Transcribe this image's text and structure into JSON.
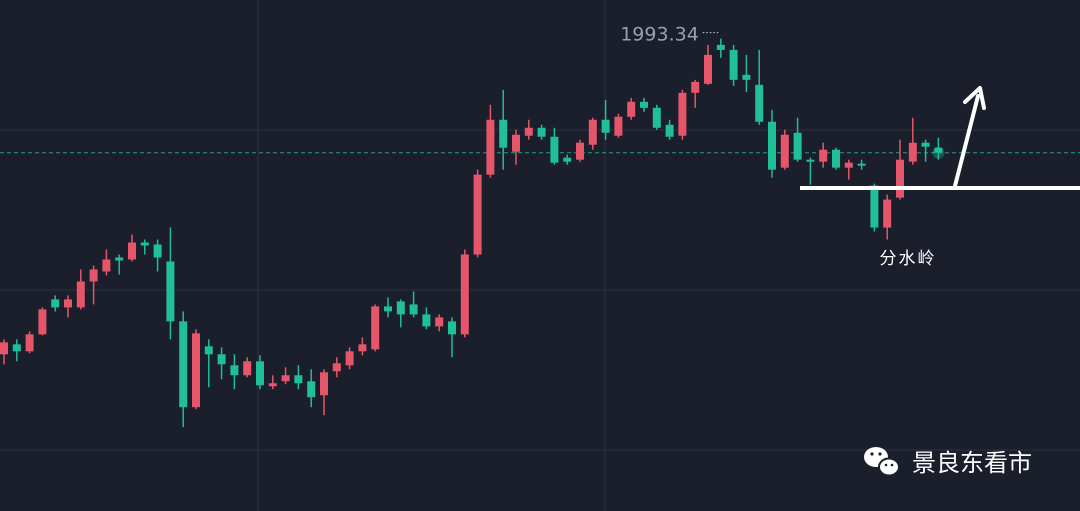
{
  "chart_data": {
    "type": "candlestick",
    "ylim": [
      1875,
      2003
    ],
    "up_color": "#e5566a",
    "down_color": "#1fbf99",
    "open": [
      1914.25,
      1916.75,
      1915,
      1919.25,
      1928,
      1926,
      1926,
      1932.5,
      1935,
      1938.5,
      1938,
      1942.25,
      1941.75,
      1937.5,
      1922.5,
      1901,
      1916.25,
      1914.25,
      1911.5,
      1909,
      1912.5,
      1906.25,
      1907.5,
      1909,
      1907.5,
      1904,
      1910,
      1911.5,
      1915,
      1915.5,
      1926.25,
      1927.5,
      1926.75,
      1924.25,
      1921.25,
      1922.5,
      1919.25,
      1939.25,
      1959.25,
      1973,
      1965,
      1969,
      1971,
      1968.75,
      1963.5,
      1963,
      1966.75,
      1973,
      1969,
      1973.75,
      1977.5,
      1976,
      1971.75,
      1969,
      1979.75,
      1982,
      1991.75,
      1990.5,
      1984.25,
      1981.75,
      1972.5,
      1961,
      1969.75,
      1963,
      1962.5,
      1965.5,
      1961,
      1962,
      1956.5,
      1946,
      1953.5,
      1962.5,
      1967.25,
      1966
    ],
    "high": [
      1918,
      1918,
      1920,
      1926,
      1929,
      1929,
      1935.5,
      1936.5,
      1940.5,
      1939.25,
      1944.25,
      1943,
      1943,
      1946,
      1925,
      1920.5,
      1918,
      1916,
      1914.25,
      1913.5,
      1914,
      1909,
      1911,
      1911.5,
      1910.5,
      1910.5,
      1913.5,
      1916,
      1918.5,
      1926.75,
      1928.5,
      1928,
      1930,
      1926,
      1924.25,
      1923.5,
      1940.5,
      1960.5,
      1976.75,
      1980.5,
      1970.5,
      1973,
      1971.75,
      1971,
      1964.25,
      1968,
      1973.5,
      1978,
      1974.5,
      1978.5,
      1978.5,
      1976.75,
      1973,
      1980.5,
      1983,
      1991.75,
      1993.34,
      1991.75,
      1989.25,
      1990.5,
      1975.5,
      1970.5,
      1973.5,
      1963.5,
      1967.25,
      1966,
      1963,
      1963,
      1957,
      1954.25,
      1968,
      1973.5,
      1968,
      1968.5
    ],
    "low": [
      1911.75,
      1912.5,
      1914.5,
      1919,
      1925,
      1923.5,
      1925.5,
      1926.75,
      1934,
      1934.25,
      1937.5,
      1939.25,
      1935,
      1918,
      1896,
      1900.5,
      1906,
      1908,
      1905.5,
      1908.5,
      1905.5,
      1905.5,
      1906.75,
      1905.5,
      1901,
      1899,
      1908.5,
      1910.5,
      1914,
      1915,
      1923.5,
      1921,
      1923.5,
      1920.5,
      1920,
      1913.5,
      1918.5,
      1938.5,
      1958.5,
      1960.5,
      1961.75,
      1968,
      1968,
      1961.75,
      1961.75,
      1962.5,
      1965.5,
      1968,
      1968.5,
      1973,
      1975,
      1970.5,
      1968,
      1968,
      1976,
      1981.75,
      1988.5,
      1981.5,
      1980,
      1971.75,
      1958.5,
      1960.5,
      1962.5,
      1956.75,
      1961,
      1960.5,
      1958,
      1960.5,
      1945,
      1943,
      1953,
      1961.75,
      1962.5,
      1963
    ],
    "close": [
      1917.25,
      1915,
      1919.25,
      1925.5,
      1926,
      1928,
      1932.5,
      1935.5,
      1938,
      1937.75,
      1942.25,
      1941.5,
      1938.5,
      1922.5,
      1901,
      1919.5,
      1914.25,
      1911.75,
      1909,
      1912.5,
      1906.5,
      1907,
      1909,
      1907,
      1903.5,
      1909.75,
      1912,
      1915,
      1916.75,
      1926.25,
      1925,
      1924.25,
      1924.25,
      1921.25,
      1923.5,
      1919.25,
      1939.25,
      1959.25,
      1973,
      1966,
      1969.25,
      1971,
      1968.75,
      1962.25,
      1962.5,
      1967.25,
      1973,
      1969.75,
      1973.75,
      1977.5,
      1976,
      1971,
      1968.75,
      1979.75,
      1982.5,
      1989.25,
      1990.5,
      1983,
      1983,
      1972.5,
      1960.5,
      1969.25,
      1963,
      1962.5,
      1965.5,
      1961,
      1962.25,
      1961.5,
      1946,
      1953,
      1963,
      1967.25,
      1966.25,
      1964.75
    ],
    "annotation": "分水岭",
    "watermark": "景良东看市"
  }
}
